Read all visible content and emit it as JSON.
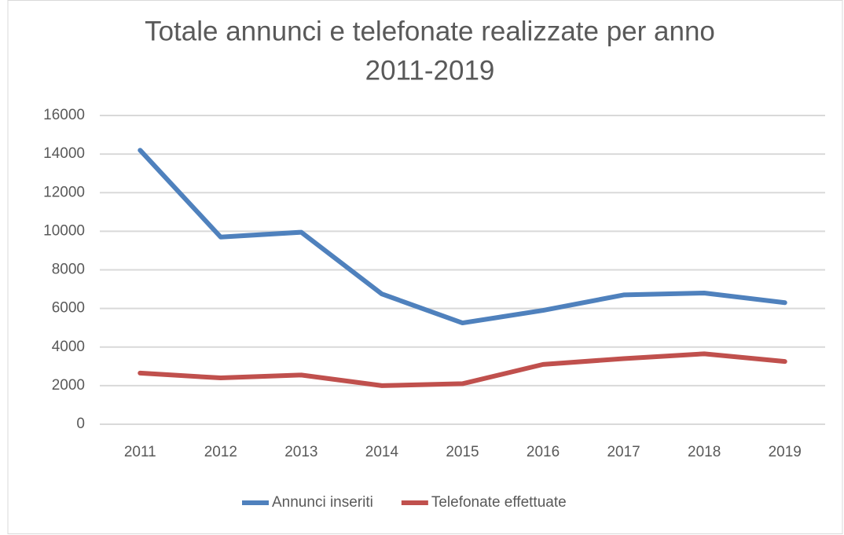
{
  "chart_data": {
    "type": "line",
    "title": [
      "Totale annunci e telefonate realizzate per anno",
      "2011-2019"
    ],
    "categories": [
      "2011",
      "2012",
      "2013",
      "2014",
      "2015",
      "2016",
      "2017",
      "2018",
      "2019"
    ],
    "series": [
      {
        "name": "Annunci inseriti",
        "color": "#4f81bd",
        "values": [
          14200,
          9700,
          9950,
          6750,
          5250,
          5900,
          6700,
          6800,
          6300
        ]
      },
      {
        "name": "Telefonate effettuate",
        "color": "#c0504d",
        "values": [
          2650,
          2400,
          2550,
          2000,
          2100,
          3100,
          3400,
          3650,
          3250
        ]
      }
    ],
    "ylim": [
      0,
      16000
    ],
    "yticks": [
      0,
      2000,
      4000,
      6000,
      8000,
      10000,
      12000,
      14000,
      16000
    ],
    "grid": true,
    "legend": "bottom"
  }
}
